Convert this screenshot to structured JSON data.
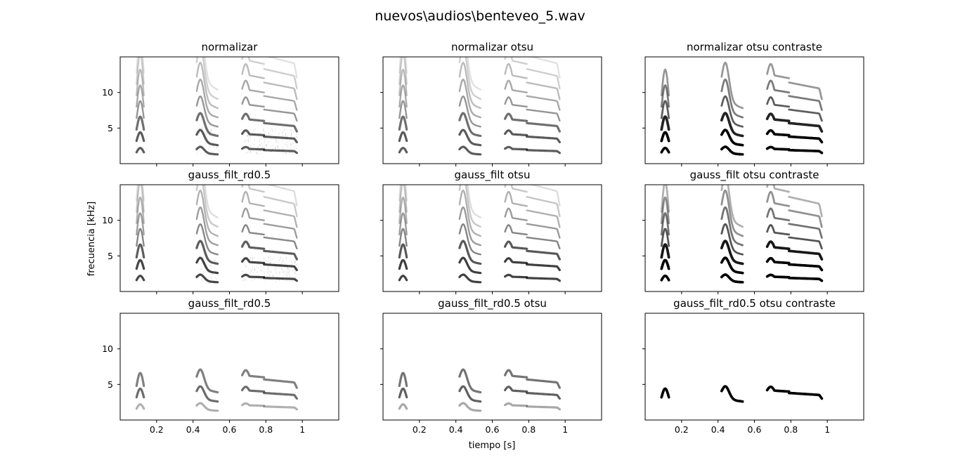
{
  "figure": {
    "suptitle": "nuevos\\audios\\benteveo_5.wav",
    "xlabel": "tiempo [s]",
    "ylabel": "frecuencia [kHz]"
  },
  "chart_data": {
    "type": "heatmap",
    "subtype": "spectrogram-grid",
    "rows": 3,
    "cols": 3,
    "shared_axes": true,
    "xlim": [
      0.0,
      1.2
    ],
    "ylim": [
      0.0,
      15.0
    ],
    "xticks": [
      0.2,
      0.4,
      0.6,
      0.8,
      1.0
    ],
    "yticks": [
      5,
      10
    ],
    "colormap": "gray_r",
    "panels": [
      {
        "title": "normalizar",
        "intensity": 0.62,
        "bandsMax": 8,
        "bgNoise": true,
        "cut": 0
      },
      {
        "title": "normalizar otsu",
        "intensity": 0.62,
        "bandsMax": 8,
        "bgNoise": false,
        "cut": 0
      },
      {
        "title": "normalizar otsu contraste",
        "intensity": 0.95,
        "bandsMax": 6,
        "bgNoise": false,
        "cut": 0
      },
      {
        "title": "gauss_filt_rd0.5",
        "intensity": 0.7,
        "bandsMax": 8,
        "bgNoise": true,
        "cut": 0
      },
      {
        "title": "gauss_filt otsu",
        "intensity": 0.72,
        "bandsMax": 8,
        "bgNoise": false,
        "cut": 0
      },
      {
        "title": "gauss_filt otsu contraste",
        "intensity": 1.0,
        "bandsMax": 7,
        "bgNoise": false,
        "cut": 0
      },
      {
        "title": "gauss_filt_rd0.5",
        "intensity": 0.55,
        "bandsMax": 3,
        "bgNoise": false,
        "cut": 1
      },
      {
        "title": "gauss_filt_rd0.5 otsu",
        "intensity": 0.6,
        "bandsMax": 3,
        "bgNoise": false,
        "cut": 1
      },
      {
        "title": "gauss_filt_rd0.5 otsu contraste",
        "intensity": 1.0,
        "bandsMax": 2,
        "bgNoise": false,
        "cut": 2
      }
    ]
  }
}
